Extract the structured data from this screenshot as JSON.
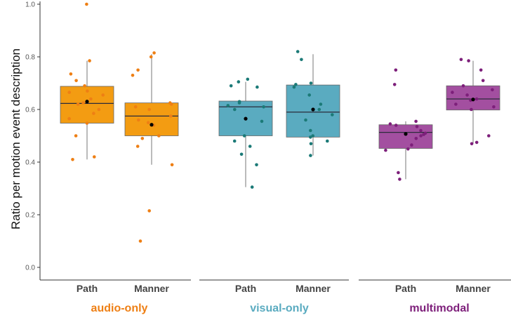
{
  "chart_data": {
    "type": "box",
    "ylabel": "Ratio per motion event description",
    "xlabel": "",
    "ylim": [
      -0.03,
      1.03
    ],
    "yticks": [
      0.0,
      0.2,
      0.4,
      0.6,
      0.8,
      1.0
    ],
    "ytick_labels": [
      "0.0",
      "0.2",
      "0.4",
      "0.6",
      "0.8",
      "1.0"
    ],
    "grid": false,
    "groups": [
      {
        "label": "audio-only",
        "color": "#f39c12",
        "point_color": "#ee7f14",
        "boxes": [
          {
            "category": "Path",
            "q1": 0.548,
            "median": 0.623,
            "q3": 0.688,
            "whisker_low": 0.41,
            "whisker_high": 0.785,
            "mean": 0.63,
            "points": [
              1.0,
              0.785,
              0.735,
              0.71,
              0.69,
              0.67,
              0.665,
              0.655,
              0.64,
              0.625,
              0.62,
              0.6,
              0.585,
              0.565,
              0.548,
              0.5,
              0.42,
              0.41
            ]
          },
          {
            "category": "Manner",
            "q1": 0.5,
            "median": 0.575,
            "q3": 0.625,
            "whisker_low": 0.39,
            "whisker_high": 0.81,
            "mean": 0.542,
            "points": [
              0.815,
              0.8,
              0.75,
              0.73,
              0.625,
              0.62,
              0.61,
              0.6,
              0.575,
              0.56,
              0.55,
              0.54,
              0.5,
              0.49,
              0.46,
              0.39,
              0.215,
              0.1
            ]
          }
        ]
      },
      {
        "label": "visual-only",
        "color": "#5aabc0",
        "point_color": "#1b7a77",
        "boxes": [
          {
            "category": "Path",
            "q1": 0.5,
            "median": 0.61,
            "q3": 0.632,
            "whisker_low": 0.305,
            "whisker_high": 0.705,
            "mean": 0.565,
            "points": [
              0.715,
              0.705,
              0.69,
              0.685,
              0.63,
              0.625,
              0.615,
              0.61,
              0.6,
              0.555,
              0.5,
              0.48,
              0.46,
              0.43,
              0.39,
              0.305
            ]
          },
          {
            "category": "Manner",
            "q1": 0.495,
            "median": 0.59,
            "q3": 0.693,
            "whisker_low": 0.425,
            "whisker_high": 0.81,
            "mean": 0.6,
            "points": [
              0.82,
              0.79,
              0.7,
              0.695,
              0.685,
              0.655,
              0.62,
              0.6,
              0.58,
              0.56,
              0.52,
              0.5,
              0.495,
              0.48,
              0.47,
              0.425
            ]
          }
        ]
      },
      {
        "label": "multimodal",
        "color": "#a34fa0",
        "point_color": "#7d1f7a",
        "boxes": [
          {
            "category": "Path",
            "q1": 0.452,
            "median": 0.513,
            "q3": 0.542,
            "whisker_low": 0.335,
            "whisker_high": 0.555,
            "mean": 0.507,
            "points": [
              0.75,
              0.695,
              0.555,
              0.545,
              0.54,
              0.535,
              0.52,
              0.51,
              0.505,
              0.5,
              0.49,
              0.465,
              0.45,
              0.445,
              0.36,
              0.335
            ]
          },
          {
            "category": "Manner",
            "q1": 0.598,
            "median": 0.64,
            "q3": 0.69,
            "whisker_low": 0.47,
            "whisker_high": 0.785,
            "mean": 0.638,
            "points": [
              0.79,
              0.785,
              0.75,
              0.71,
              0.69,
              0.675,
              0.665,
              0.655,
              0.64,
              0.635,
              0.62,
              0.61,
              0.6,
              0.5,
              0.475,
              0.47
            ]
          }
        ]
      }
    ]
  }
}
